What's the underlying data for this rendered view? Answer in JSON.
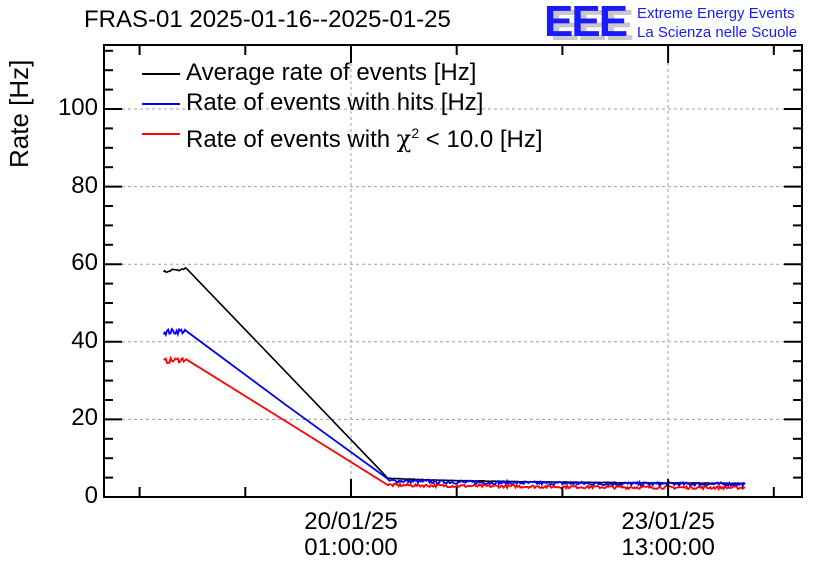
{
  "chart_data": {
    "type": "line",
    "title": "FRAS-01 2025-01-16--2025-01-25",
    "xlabel": "",
    "ylabel": "Rate [Hz]",
    "ylim": [
      0,
      116
    ],
    "grid": true,
    "legend_position": "top-left",
    "x_unit": "days relative to 20/01/25 01:00:00",
    "xlim": [
      -2.35,
      5.35
    ],
    "y_ticks": [
      "0",
      "20",
      "40",
      "60",
      "80",
      "100"
    ],
    "y_tick_values": [
      0,
      20,
      40,
      60,
      80,
      100
    ],
    "x_major_ticks": [
      {
        "x": 0,
        "line1": "20/01/25",
        "line2": "01:00:00"
      },
      {
        "x": 3.5,
        "line1": "23/01/25",
        "line2": "13:00:00"
      }
    ],
    "x_minor_step_days": 1.1667,
    "series": [
      {
        "name": "Average rate of events [Hz]",
        "color": "#000000",
        "noise": 0.4,
        "points": [
          [
            -2.07,
            58.2
          ],
          [
            -2.02,
            58.0
          ],
          [
            -1.97,
            58.6
          ],
          [
            -1.9,
            58.4
          ],
          [
            -1.82,
            59.0
          ],
          [
            0.41,
            4.8
          ],
          [
            1.0,
            4.3
          ],
          [
            2.0,
            3.9
          ],
          [
            3.0,
            3.7
          ],
          [
            4.35,
            3.5
          ]
        ]
      },
      {
        "name": "Rate of events with hits [Hz]",
        "color": "#0000ff",
        "noise": 1.5,
        "points": [
          [
            -2.07,
            42.5
          ],
          [
            -1.82,
            42.8
          ],
          [
            0.41,
            4.2
          ],
          [
            1.0,
            3.9
          ],
          [
            2.0,
            3.6
          ],
          [
            3.0,
            3.4
          ],
          [
            4.35,
            3.3
          ]
        ]
      },
      {
        "name": "Rate of events with χ² < 10.0 [Hz]",
        "color": "#ff0000",
        "noise": 1.3,
        "points": [
          [
            -2.07,
            35.0
          ],
          [
            -1.82,
            35.5
          ],
          [
            0.41,
            3.1
          ],
          [
            1.0,
            2.9
          ],
          [
            2.0,
            2.7
          ],
          [
            3.0,
            2.5
          ],
          [
            4.35,
            2.4
          ]
        ]
      }
    ]
  },
  "logo": {
    "mark": "EEE",
    "line1": "Extreme Energy Events",
    "line2": "La Scienza nelle Scuole"
  },
  "legend": [
    {
      "label": "Average rate of events [Hz]",
      "color": "#000000"
    },
    {
      "label": "Rate of events with hits [Hz]",
      "color": "#0000ff"
    },
    {
      "label_prefix": "Rate of events with ",
      "label_chi": "χ",
      "label_sup": "2",
      "label_suffix": " < 10.0 [Hz]",
      "color": "#ff0000"
    }
  ]
}
